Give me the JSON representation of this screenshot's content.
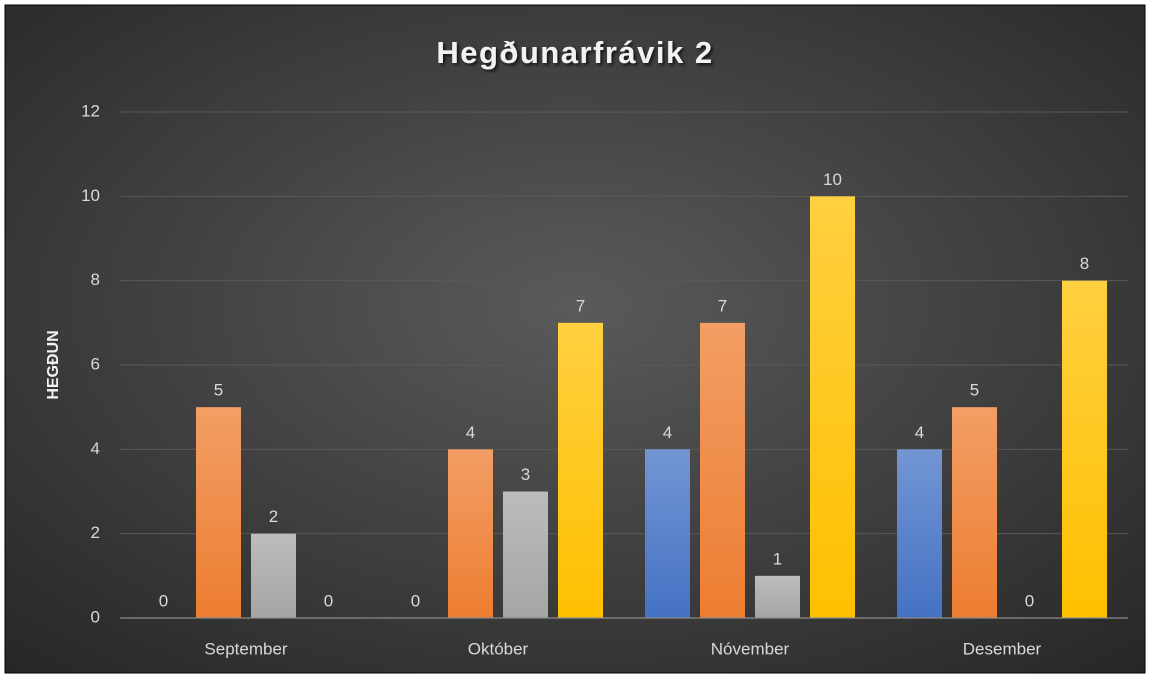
{
  "chart_data": {
    "type": "bar",
    "title": "Hegðunarfrávik 2",
    "y_label": "HEGÐUN",
    "categories": [
      "September",
      "Október",
      "Nóvember",
      "Desember"
    ],
    "series": [
      {
        "color": "#4472c4",
        "values": [
          0,
          0,
          4,
          4
        ]
      },
      {
        "color": "#ed7d31",
        "values": [
          5,
          4,
          7,
          5
        ]
      },
      {
        "color": "#a5a5a5",
        "values": [
          2,
          3,
          1,
          0
        ]
      },
      {
        "color": "#ffc000",
        "values": [
          0,
          7,
          10,
          8
        ]
      }
    ],
    "ylim": [
      0,
      12
    ],
    "yticks": [
      0,
      2,
      4,
      6,
      8,
      10,
      12
    ],
    "grid": true,
    "data_labels": true
  }
}
